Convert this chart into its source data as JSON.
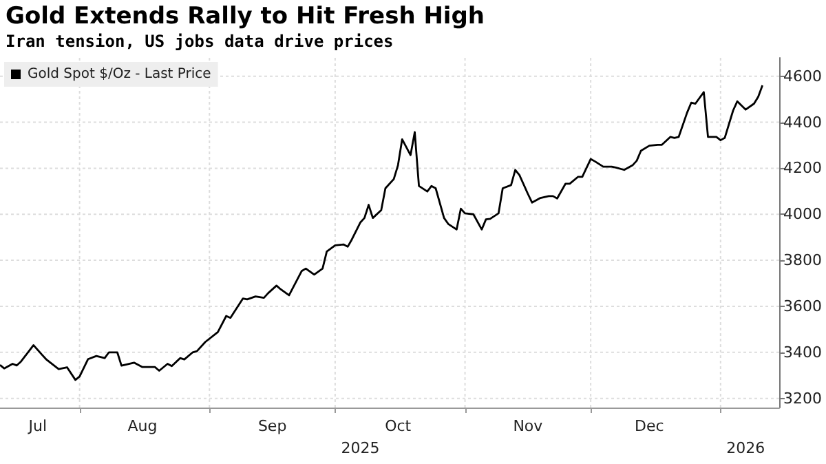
{
  "chart_data": {
    "type": "line",
    "title": "Gold Extends Rally to Hit Fresh High",
    "subtitle": "Iran tension, US jobs data drive prices",
    "x": [
      "2025-07-13",
      "2025-07-14",
      "2025-07-16",
      "2025-07-17",
      "2025-07-18",
      "2025-07-21",
      "2025-07-23",
      "2025-07-24",
      "2025-07-27",
      "2025-07-29",
      "2025-07-31",
      "2025-08-01",
      "2025-08-03",
      "2025-08-05",
      "2025-08-07",
      "2025-08-08",
      "2025-08-10",
      "2025-08-11",
      "2025-08-14",
      "2025-08-16",
      "2025-08-19",
      "2025-08-20",
      "2025-08-22",
      "2025-08-23",
      "2025-08-25",
      "2025-08-26",
      "2025-08-28",
      "2025-08-29",
      "2025-08-31",
      "2025-09-03",
      "2025-09-05",
      "2025-09-06",
      "2025-09-09",
      "2025-09-10",
      "2025-09-12",
      "2025-09-14",
      "2025-09-15",
      "2025-09-17",
      "2025-09-18",
      "2025-09-20",
      "2025-09-23",
      "2025-09-24",
      "2025-09-26",
      "2025-09-28",
      "2025-09-29",
      "2025-10-01",
      "2025-10-03",
      "2025-10-04",
      "2025-10-05",
      "2025-10-07",
      "2025-10-08",
      "2025-10-09",
      "2025-10-10",
      "2025-10-12",
      "2025-10-13",
      "2025-10-15",
      "2025-10-16",
      "2025-10-17",
      "2025-10-19",
      "2025-10-20",
      "2025-10-21",
      "2025-10-23",
      "2025-10-24",
      "2025-10-25",
      "2025-10-27",
      "2025-10-28",
      "2025-10-30",
      "2025-10-31",
      "2025-11-01",
      "2025-11-03",
      "2025-11-05",
      "2025-11-06",
      "2025-11-07",
      "2025-11-09",
      "2025-11-10",
      "2025-11-12",
      "2025-11-13",
      "2025-11-14",
      "2025-11-16",
      "2025-11-17",
      "2025-11-19",
      "2025-11-21",
      "2025-11-22",
      "2025-11-23",
      "2025-11-25",
      "2025-11-26",
      "2025-11-28",
      "2025-11-29",
      "2025-12-01",
      "2025-12-02",
      "2025-12-04",
      "2025-12-06",
      "2025-12-07",
      "2025-12-09",
      "2025-12-11",
      "2025-12-12",
      "2025-12-13",
      "2025-12-15",
      "2025-12-17",
      "2025-12-18",
      "2025-12-20",
      "2025-12-21",
      "2025-12-22",
      "2025-12-24",
      "2025-12-25",
      "2025-12-26",
      "2025-12-28",
      "2025-12-29",
      "2025-12-31",
      "2026-01-01",
      "2026-01-02",
      "2026-01-04",
      "2026-01-05",
      "2026-01-07",
      "2026-01-09",
      "2026-01-10",
      "2026-01-11"
    ],
    "series": [
      {
        "name": "Gold Spot $/Oz - Last Price",
        "color": "#000000",
        "values": [
          3345,
          3330,
          3350,
          3343,
          3360,
          3431,
          3390,
          3370,
          3327,
          3335,
          3280,
          3295,
          3370,
          3384,
          3375,
          3400,
          3400,
          3342,
          3355,
          3336,
          3336,
          3320,
          3350,
          3340,
          3375,
          3369,
          3400,
          3405,
          3445,
          3488,
          3558,
          3550,
          3634,
          3630,
          3643,
          3637,
          3657,
          3690,
          3674,
          3648,
          3753,
          3764,
          3738,
          3764,
          3838,
          3865,
          3869,
          3859,
          3891,
          3964,
          3984,
          4041,
          3984,
          4018,
          4113,
          4153,
          4213,
          4326,
          4257,
          4357,
          4123,
          4099,
          4123,
          4113,
          3984,
          3958,
          3934,
          4024,
          4004,
          4000,
          3934,
          3978,
          3980,
          4004,
          4113,
          4127,
          4193,
          4170,
          4089,
          4051,
          4071,
          4079,
          4079,
          4069,
          4133,
          4133,
          4163,
          4163,
          4240,
          4230,
          4207,
          4207,
          4203,
          4193,
          4213,
          4233,
          4276,
          4298,
          4302,
          4302,
          4336,
          4332,
          4336,
          4441,
          4485,
          4481,
          4531,
          4336,
          4336,
          4322,
          4332,
          4451,
          4491,
          4455,
          4481,
          4511,
          4560
        ]
      }
    ],
    "xlim": [
      "2025-07-13",
      "2026-01-15"
    ],
    "xticks": [
      {
        "value": "2025-07-22",
        "label": "Jul"
      },
      {
        "value": "2025-08-01",
        "label": null
      },
      {
        "value": "2025-08-16",
        "label": "Aug"
      },
      {
        "value": "2025-09-01",
        "label": null
      },
      {
        "value": "2025-09-16",
        "label": "Sep"
      },
      {
        "value": "2025-10-01",
        "label": null
      },
      {
        "value": "2025-10-16",
        "label": "Oct"
      },
      {
        "value": "2025-11-01",
        "label": null
      },
      {
        "value": "2025-11-16",
        "label": "Nov"
      },
      {
        "value": "2025-12-01",
        "label": null
      },
      {
        "value": "2025-12-15",
        "label": "Dec"
      },
      {
        "value": "2026-01-01",
        "label": null
      }
    ],
    "x2lim": [
      "2025-07-13",
      "2026-01-15"
    ],
    "x2ticks": [
      {
        "value": "2025-10-07",
        "label": "2025"
      },
      {
        "value": "2026-01-07",
        "label": "2026"
      }
    ],
    "ylim": [
      3160,
      4680
    ],
    "yticks": [
      3200,
      3400,
      3600,
      3800,
      4000,
      4200,
      4400,
      4600
    ],
    "grid": true,
    "legend": "top left",
    "line_style": "solid",
    "marker": "none"
  }
}
